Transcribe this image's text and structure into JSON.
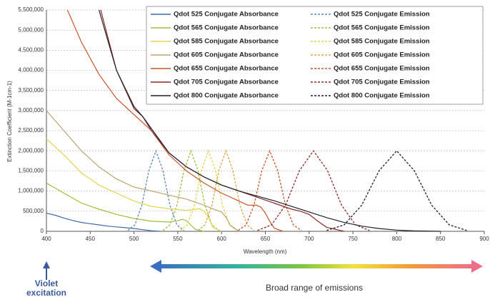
{
  "chart_data": {
    "type": "line",
    "y_label": "Extinction Coefficient (M-1cm-1)",
    "x_label": "Wavelength (nm)",
    "xlim": [
      400,
      900
    ],
    "xticks": [
      400,
      450,
      500,
      550,
      600,
      650,
      700,
      750,
      800,
      850,
      900
    ],
    "ylim": [
      0,
      5500000
    ],
    "yticks": [
      0,
      {
        "value": 500000,
        "label": "500,000"
      },
      {
        "value": 1000000,
        "label": "1,000,000"
      },
      {
        "value": 1500000,
        "label": "1,500,000"
      },
      {
        "value": 2000000,
        "label": "2,000,000"
      },
      {
        "value": 2500000,
        "label": "2,500,000"
      },
      {
        "value": 3000000,
        "label": "3,000,000"
      },
      {
        "value": 3500000,
        "label": "3,500,000"
      },
      {
        "value": 4000000,
        "label": "4,000,000"
      },
      {
        "value": 4500000,
        "label": "4,500,000"
      },
      {
        "value": 5000000,
        "label": "5,000,000"
      },
      {
        "value": 5500000,
        "label": "5,500,000"
      }
    ],
    "grid": true,
    "legend": "top-right",
    "series": [
      {
        "name": "Qdot 525 Conjugate Absorbance",
        "color": "#3d6aa8",
        "dashed": false,
        "x": [
          400,
          410,
          420,
          430,
          440,
          450,
          460,
          470,
          480,
          490,
          500,
          510,
          520,
          530
        ],
        "values": [
          450000,
          400000,
          330000,
          270000,
          220000,
          190000,
          160000,
          130000,
          110000,
          90000,
          70000,
          40000,
          15000,
          0
        ]
      },
      {
        "name": "Qdot 525 Conjugate Emission",
        "color": "#5f86b8",
        "dashed": true,
        "x": [
          493,
          501,
          509,
          517,
          525,
          533,
          541,
          549,
          557
        ],
        "values": [
          22000,
          160000,
          650000,
          1510000,
          2000000,
          1510000,
          650000,
          160000,
          22000
        ]
      },
      {
        "name": "Qdot 565 Conjugate Absorbance",
        "color": "#9cbf3a",
        "dashed": false,
        "x": [
          400,
          420,
          440,
          460,
          480,
          500,
          520,
          540,
          550,
          555,
          560,
          565,
          570,
          580
        ],
        "values": [
          1200000,
          950000,
          700000,
          550000,
          420000,
          320000,
          250000,
          230000,
          260000,
          300000,
          260000,
          150000,
          50000,
          0
        ]
      },
      {
        "name": "Qdot 565 Conjugate Emission",
        "color": "#9cbf3a",
        "dashed": true,
        "x": [
          533,
          541,
          549,
          557,
          565,
          573,
          581,
          589,
          597
        ],
        "values": [
          22000,
          160000,
          650000,
          1510000,
          2000000,
          1510000,
          650000,
          160000,
          22000
        ]
      },
      {
        "name": "Qdot 585 Conjugate Absorbance",
        "color": "#e6d34a",
        "dashed": false,
        "x": [
          400,
          420,
          440,
          460,
          480,
          500,
          520,
          540,
          560,
          570,
          575,
          580,
          585,
          590,
          600
        ],
        "values": [
          2300000,
          1900000,
          1450000,
          1150000,
          950000,
          750000,
          620000,
          560000,
          520000,
          550000,
          560000,
          500000,
          350000,
          100000,
          0
        ]
      },
      {
        "name": "Qdot 585 Conjugate Emission",
        "color": "#e6d34a",
        "dashed": true,
        "x": [
          553,
          561,
          569,
          577,
          585,
          593,
          601,
          609,
          617
        ],
        "values": [
          22000,
          160000,
          650000,
          1510000,
          2000000,
          1510000,
          650000,
          160000,
          22000
        ]
      },
      {
        "name": "Qdot 605 Conjugate Absorbance",
        "color": "#b9a56f",
        "dashed": false,
        "x": [
          400,
          420,
          440,
          460,
          480,
          500,
          520,
          540,
          560,
          580,
          590,
          595,
          600,
          605,
          610,
          620
        ],
        "values": [
          3000000,
          2500000,
          2000000,
          1600000,
          1300000,
          1100000,
          1000000,
          900000,
          800000,
          650000,
          560000,
          520000,
          480000,
          350000,
          150000,
          0
        ]
      },
      {
        "name": "Qdot 605 Conjugate Emission",
        "color": "#d6a94a",
        "dashed": true,
        "x": [
          573,
          581,
          589,
          597,
          605,
          613,
          621,
          629,
          637
        ],
        "values": [
          22000,
          160000,
          650000,
          1510000,
          2000000,
          1510000,
          650000,
          160000,
          22000
        ]
      },
      {
        "name": "Qdot 655 Conjugate Absorbance",
        "color": "#c8552c",
        "dashed": false,
        "x": [
          424,
          440,
          460,
          480,
          500,
          520,
          540,
          560,
          580,
          600,
          620,
          630,
          640,
          645,
          650,
          655,
          660,
          670
        ],
        "values": [
          5500000,
          4700000,
          3900000,
          3300000,
          2900000,
          2500000,
          1900000,
          1500000,
          1200000,
          950000,
          750000,
          650000,
          650000,
          600000,
          450000,
          250000,
          80000,
          0
        ]
      },
      {
        "name": "Qdot 655 Conjugate Emission",
        "color": "#c8552c",
        "dashed": true,
        "x": [
          619,
          628,
          637,
          646,
          655,
          664,
          673,
          682,
          691
        ],
        "values": [
          22000,
          160000,
          650000,
          1510000,
          2000000,
          1510000,
          650000,
          160000,
          22000
        ]
      },
      {
        "name": "Qdot 705 Conjugate Absorbance",
        "color": "#8b2a24",
        "dashed": false,
        "x": [
          462,
          480,
          500,
          510,
          520,
          540,
          560,
          580,
          600,
          620,
          640,
          660,
          680,
          690,
          700,
          710,
          720,
          740
        ],
        "values": [
          5500000,
          4000000,
          3050000,
          2850000,
          2500000,
          1950000,
          1600000,
          1350000,
          1150000,
          1000000,
          850000,
          700000,
          550000,
          500000,
          420000,
          250000,
          100000,
          0
        ]
      },
      {
        "name": "Qdot 705 Conjugate Emission",
        "color": "#8b2a24",
        "dashed": true,
        "x": [
          641,
          657,
          673,
          689,
          705,
          721,
          737,
          753,
          769
        ],
        "values": [
          22000,
          160000,
          650000,
          1510000,
          2000000,
          1510000,
          650000,
          160000,
          22000
        ]
      },
      {
        "name": "Qdot 800 Conjugate Absorbance",
        "color": "#1f1f2e",
        "dashed": false,
        "x": [
          460,
          480,
          500,
          510,
          520,
          540,
          560,
          580,
          600,
          620,
          640,
          660,
          680,
          700,
          720,
          740,
          760,
          780,
          800,
          820,
          850
        ],
        "values": [
          5500000,
          4000000,
          3100000,
          2850000,
          2550000,
          1950000,
          1600000,
          1350000,
          1150000,
          1000000,
          880000,
          760000,
          620000,
          480000,
          340000,
          220000,
          130000,
          70000,
          30000,
          10000,
          0
        ]
      },
      {
        "name": "Qdot 800 Conjugate Emission",
        "color": "#1f1f2e",
        "dashed": true,
        "x": [
          720,
          740,
          760,
          780,
          800,
          820,
          840,
          860,
          880
        ],
        "values": [
          22000,
          160000,
          650000,
          1510000,
          2000000,
          1510000,
          650000,
          160000,
          22000
        ]
      }
    ],
    "annotations": [
      "Violet",
      "excitation",
      "Broad range of emissions"
    ]
  }
}
